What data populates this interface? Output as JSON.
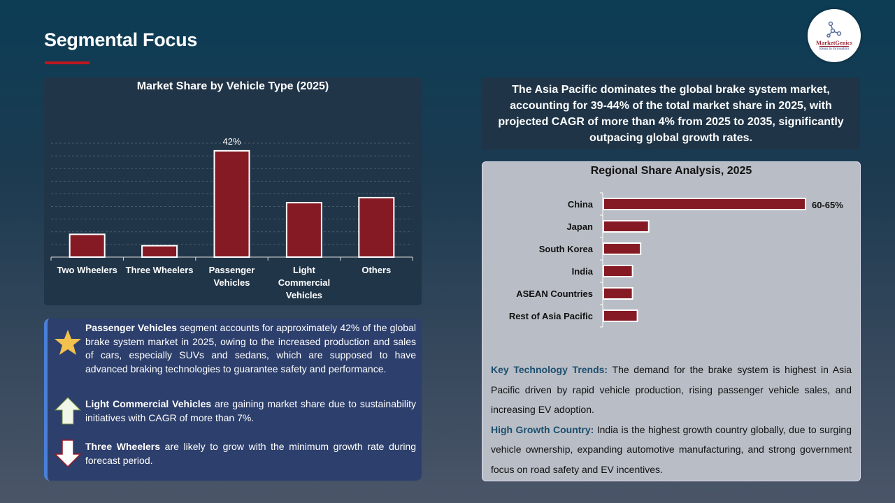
{
  "header": {
    "title": "Segmental Focus",
    "logo_text": "MarketGenics",
    "logo_tagline": "Ideas to Innovation",
    "accent": "#c0161e"
  },
  "chart_data": [
    {
      "type": "bar",
      "title": "Market Share by Vehicle Type (2025)",
      "categories": [
        "Two Wheelers",
        "Three Wheelers",
        "Passenger Vehicles",
        "Light Commercial Vehicles",
        "Others"
      ],
      "category_lines": [
        [
          "Two Wheelers"
        ],
        [
          "Three Wheelers"
        ],
        [
          "Passenger",
          "Vehicles"
        ],
        [
          "Light",
          "Commercial",
          "Vehicles"
        ],
        [
          "Others"
        ]
      ],
      "values": [
        9,
        4.5,
        42,
        21.5,
        23.5
      ],
      "data_labels": [
        "",
        "",
        "42%",
        "",
        ""
      ],
      "ylim": [
        0,
        45
      ],
      "grid": true,
      "grid_step": 5,
      "bar_color": "#861a24"
    },
    {
      "type": "bar",
      "orientation": "horizontal",
      "title": "Regional Share Analysis, 2025",
      "categories": [
        "China",
        "Japan",
        "South Korea",
        "India",
        "ASEAN Countries",
        "Rest of Asia Pacific"
      ],
      "values": [
        62.5,
        14,
        11.5,
        9,
        9,
        10.5
      ],
      "data_labels": [
        "60-65%",
        "",
        "",
        "",
        "",
        ""
      ],
      "grid": false,
      "bar_color": "#861a24"
    }
  ],
  "insights": [
    {
      "icon": "star-icon",
      "bold": "Passenger Vehicles",
      "text": " segment accounts for approximately 42% of the global brake system market in 2025, owing to the increased production and sales of cars, especially SUVs and sedans, which are supposed to have advanced braking technologies to guarantee safety and performance."
    },
    {
      "icon": "arrow-up-icon",
      "bold": "Light Commercial Vehicles",
      "text": " are gaining market share due to sustainability initiatives with CAGR of more than 7%."
    },
    {
      "icon": "arrow-down-icon",
      "bold": "Three Wheelers",
      "text": " are likely to grow with the minimum growth rate during forecast period."
    }
  ],
  "summary": "The Asia Pacific dominates the global brake system market, accounting for 39-44% of the total market share in 2025, with projected CAGR of more than 4% from 2025 to 2035, significantly outpacing global growth rates.",
  "notes": [
    {
      "label": "Key Technology Trends:",
      "text": " The demand for the brake system is highest in Asia Pacific driven by rapid vehicle production, rising passenger vehicle sales, and increasing EV adoption."
    },
    {
      "label": "High Growth Country:",
      "text": " India is the highest growth country globally, due to surging vehicle ownership, expanding automotive manufacturing, and strong government focus on road safety and EV incentives."
    }
  ]
}
